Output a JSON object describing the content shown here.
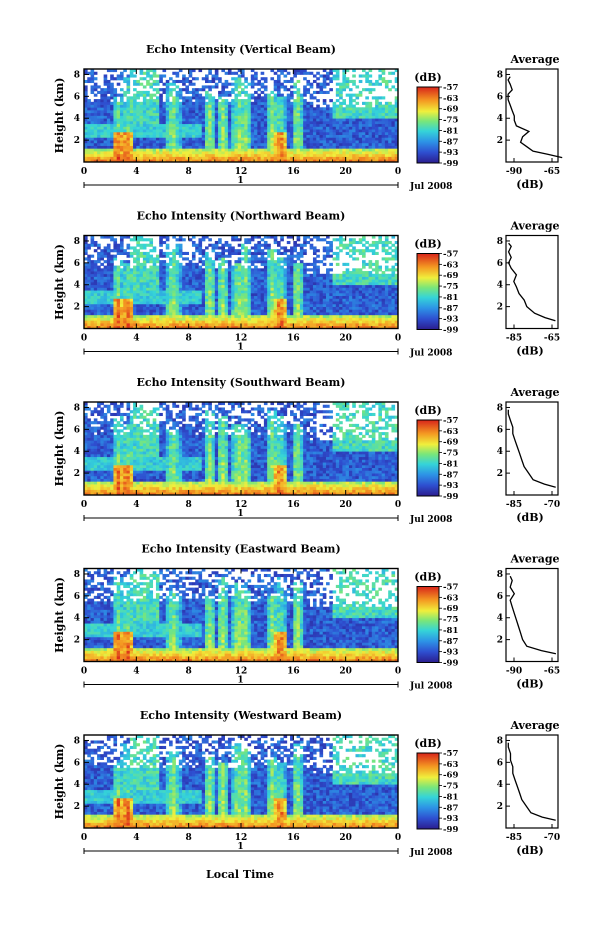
{
  "figure": {
    "x_axis_label": "Local Time",
    "date_label": "Jul 2008",
    "day_marker": "1"
  },
  "chart_data": [
    {
      "type": "heatmap",
      "title": "Echo Intensity (Vertical Beam)",
      "ylabel": "Height (km)",
      "xlabel": "Local Time",
      "x_ticks": [
        "0",
        "4",
        "8",
        "12",
        "16",
        "20",
        "0"
      ],
      "y_ticks": [
        "2",
        "4",
        "6",
        "8"
      ],
      "colorbar_unit": "(dB)",
      "colorbar_ticks": [
        "-57",
        "-63",
        "-69",
        "-75",
        "-81",
        "-87",
        "-93",
        "-99"
      ],
      "colorbar_range": [
        -99,
        -57
      ],
      "average": {
        "title": "Average",
        "xlabel": "(dB)",
        "x_ticks": [
          "-90",
          "-65"
        ],
        "xlim": [
          -90,
          -65
        ],
        "y_ticks": [
          "2",
          "4",
          "6",
          "8"
        ],
        "profile": [
          [
            -63,
            0.4
          ],
          [
            -70,
            0.7
          ],
          [
            -77,
            1.0
          ],
          [
            -80,
            1.4
          ],
          [
            -83,
            1.8
          ],
          [
            -82,
            2.3
          ],
          [
            -79,
            2.8
          ],
          [
            -85,
            3.3
          ],
          [
            -86,
            3.8
          ],
          [
            -86,
            4.2
          ],
          [
            -87,
            4.7
          ],
          [
            -88,
            5.2
          ],
          [
            -89,
            5.7
          ],
          [
            -89,
            6.2
          ],
          [
            -87,
            6.6
          ],
          [
            -88,
            7.1
          ],
          [
            -89,
            7.5
          ],
          [
            -88,
            7.8
          ]
        ]
      }
    },
    {
      "type": "heatmap",
      "title": "Echo Intensity (Northward Beam)",
      "ylabel": "Height (km)",
      "xlabel": "Local Time",
      "x_ticks": [
        "0",
        "4",
        "8",
        "12",
        "16",
        "20",
        "0"
      ],
      "y_ticks": [
        "2",
        "4",
        "6",
        "8"
      ],
      "colorbar_unit": "(dB)",
      "colorbar_ticks": [
        "-57",
        "-63",
        "-69",
        "-75",
        "-81",
        "-87",
        "-93",
        "-99"
      ],
      "colorbar_range": [
        -99,
        -57
      ],
      "average": {
        "title": "Average",
        "xlabel": "(dB)",
        "x_ticks": [
          "-85",
          "-65"
        ],
        "xlim": [
          -85,
          -65
        ],
        "y_ticks": [
          "2",
          "4",
          "6",
          "8"
        ],
        "profile": [
          [
            -66,
            0.7
          ],
          [
            -70,
            1.0
          ],
          [
            -74,
            1.4
          ],
          [
            -77,
            2.0
          ],
          [
            -78,
            2.6
          ],
          [
            -80,
            3.2
          ],
          [
            -81,
            3.8
          ],
          [
            -82,
            4.3
          ],
          [
            -81,
            4.9
          ],
          [
            -83,
            5.5
          ],
          [
            -84,
            6.0
          ],
          [
            -83,
            6.5
          ],
          [
            -84,
            7.0
          ],
          [
            -83,
            7.5
          ],
          [
            -84,
            7.8
          ]
        ]
      }
    },
    {
      "type": "heatmap",
      "title": "Echo Intensity (Southward Beam)",
      "ylabel": "Height (km)",
      "xlabel": "Local Time",
      "x_ticks": [
        "0",
        "4",
        "8",
        "12",
        "16",
        "20",
        "0"
      ],
      "y_ticks": [
        "2",
        "4",
        "6",
        "8"
      ],
      "colorbar_unit": "(dB)",
      "colorbar_ticks": [
        "-57",
        "-63",
        "-69",
        "-75",
        "-81",
        "-87",
        "-93",
        "-99"
      ],
      "colorbar_range": [
        -99,
        -57
      ],
      "average": {
        "title": "Average",
        "xlabel": "(dB)",
        "x_ticks": [
          "-85",
          "-70"
        ],
        "xlim": [
          -89,
          -66
        ],
        "y_ticks": [
          "2",
          "4",
          "6",
          "8"
        ],
        "profile": [
          [
            -67,
            0.7
          ],
          [
            -72,
            1.0
          ],
          [
            -77,
            1.4
          ],
          [
            -79,
            2.0
          ],
          [
            -81,
            2.6
          ],
          [
            -82,
            3.2
          ],
          [
            -83,
            3.8
          ],
          [
            -84,
            4.4
          ],
          [
            -85,
            5.0
          ],
          [
            -86,
            5.6
          ],
          [
            -86,
            6.2
          ],
          [
            -87,
            6.8
          ],
          [
            -88,
            7.4
          ],
          [
            -88,
            7.8
          ]
        ]
      }
    },
    {
      "type": "heatmap",
      "title": "Echo Intensity (Eastward Beam)",
      "ylabel": "Height (km)",
      "xlabel": "Local Time",
      "x_ticks": [
        "0",
        "4",
        "8",
        "12",
        "16",
        "20",
        "0"
      ],
      "y_ticks": [
        "2",
        "4",
        "6",
        "8"
      ],
      "colorbar_unit": "(dB)",
      "colorbar_ticks": [
        "-57",
        "-63",
        "-69",
        "-75",
        "-81",
        "-87",
        "-93",
        "-99"
      ],
      "colorbar_range": [
        -99,
        -57
      ],
      "average": {
        "title": "Average",
        "xlabel": "(dB)",
        "x_ticks": [
          "-90",
          "-65"
        ],
        "xlim": [
          -90,
          -65
        ],
        "y_ticks": [
          "2",
          "4",
          "6",
          "8"
        ],
        "profile": [
          [
            -66,
            0.7
          ],
          [
            -73,
            1.0
          ],
          [
            -80,
            1.4
          ],
          [
            -82,
            2.0
          ],
          [
            -83,
            2.6
          ],
          [
            -84,
            3.2
          ],
          [
            -85,
            3.8
          ],
          [
            -86,
            4.4
          ],
          [
            -87,
            5.0
          ],
          [
            -88,
            5.6
          ],
          [
            -86,
            6.2
          ],
          [
            -88,
            6.8
          ],
          [
            -87,
            7.4
          ],
          [
            -88,
            7.8
          ]
        ]
      }
    },
    {
      "type": "heatmap",
      "title": "Echo Intensity (Westward Beam)",
      "ylabel": "Height (km)",
      "xlabel": "Local Time",
      "x_ticks": [
        "0",
        "4",
        "8",
        "12",
        "16",
        "20",
        "0"
      ],
      "y_ticks": [
        "2",
        "4",
        "6",
        "8"
      ],
      "colorbar_unit": "(dB)",
      "colorbar_ticks": [
        "-57",
        "-63",
        "-69",
        "-75",
        "-81",
        "-87",
        "-93",
        "-99"
      ],
      "colorbar_range": [
        -99,
        -57
      ],
      "average": {
        "title": "Average",
        "xlabel": "(dB)",
        "x_ticks": [
          "-85",
          "-70"
        ],
        "xlim": [
          -89,
          -66
        ],
        "y_ticks": [
          "2",
          "4",
          "6",
          "8"
        ],
        "profile": [
          [
            -67,
            0.7
          ],
          [
            -73,
            1.0
          ],
          [
            -78,
            1.4
          ],
          [
            -80,
            2.0
          ],
          [
            -82,
            2.6
          ],
          [
            -83,
            3.2
          ],
          [
            -84,
            3.8
          ],
          [
            -85,
            4.4
          ],
          [
            -86,
            5.0
          ],
          [
            -86,
            5.6
          ],
          [
            -87,
            6.2
          ],
          [
            -87,
            6.8
          ],
          [
            -88,
            7.4
          ],
          [
            -88,
            7.8
          ]
        ]
      }
    }
  ]
}
